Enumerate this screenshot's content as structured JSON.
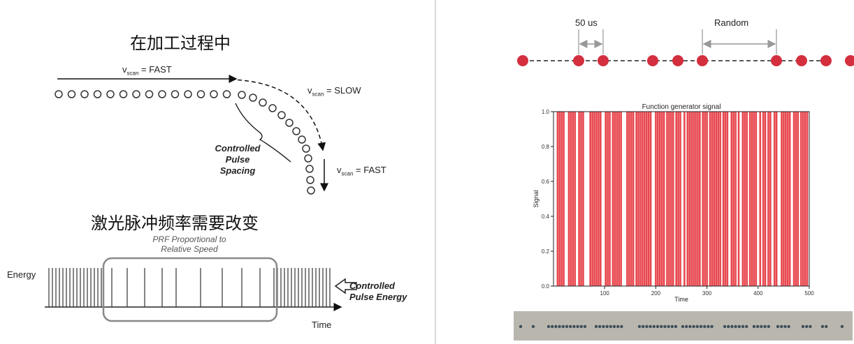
{
  "left_panel": {
    "title_top": "在加工过程中",
    "title_bottom": "激光脉冲频率需要改变",
    "vscan_prefix": "v",
    "vscan_sub": "scan",
    "vscan_fast_top": " = FAST",
    "vscan_slow": " = SLOW",
    "vscan_fast_bottom": " = FAST",
    "controlled_pulse_spacing": [
      "Controlled",
      "Pulse",
      "Spacing"
    ],
    "prf_note": [
      "PRF Proportional to",
      "Relative Speed"
    ],
    "energy_label": "Energy",
    "time_label": "Time",
    "controlled_pulse_energy": [
      "Controlled",
      "Pulse Energy"
    ]
  },
  "right_panel": {
    "label_50us": "50 us",
    "label_random": "Random",
    "dot_color": "#d32f3f",
    "chart_title": "Function generator signal",
    "chart_ylabel": "Signal",
    "chart_xlabel": "Time"
  },
  "chart_data": {
    "type": "bar",
    "title": "Function generator signal",
    "xlabel": "Time",
    "ylabel": "Signal",
    "xlim": [
      0,
      500
    ],
    "ylim": [
      0.0,
      1.0
    ],
    "x_ticks": [
      "100",
      "200",
      "300",
      "400",
      "500"
    ],
    "y_ticks": [
      "0.0",
      "0.2",
      "0.4",
      "0.6",
      "0.8",
      "1.0"
    ],
    "pulse_times": [
      8,
      12,
      16,
      20,
      30,
      34,
      38,
      42,
      50,
      54,
      58,
      72,
      76,
      80,
      84,
      88,
      92,
      102,
      106,
      110,
      116,
      120,
      124,
      128,
      132,
      144,
      148,
      152,
      156,
      162,
      166,
      170,
      174,
      178,
      182,
      186,
      190,
      200,
      204,
      208,
      212,
      216,
      222,
      226,
      230,
      234,
      240,
      244,
      248,
      256,
      262,
      266,
      270,
      274,
      278,
      282,
      286,
      292,
      296,
      300,
      306,
      310,
      314,
      318,
      322,
      326,
      332,
      336,
      340,
      348,
      352,
      356,
      362,
      370,
      374,
      378,
      384,
      388,
      392,
      396,
      404,
      410,
      414,
      420,
      424,
      432,
      436,
      446,
      450,
      454,
      458,
      462,
      470,
      474,
      478,
      484,
      488,
      492,
      496
    ],
    "pulse_value": 1.0,
    "color": "#e8484f"
  }
}
